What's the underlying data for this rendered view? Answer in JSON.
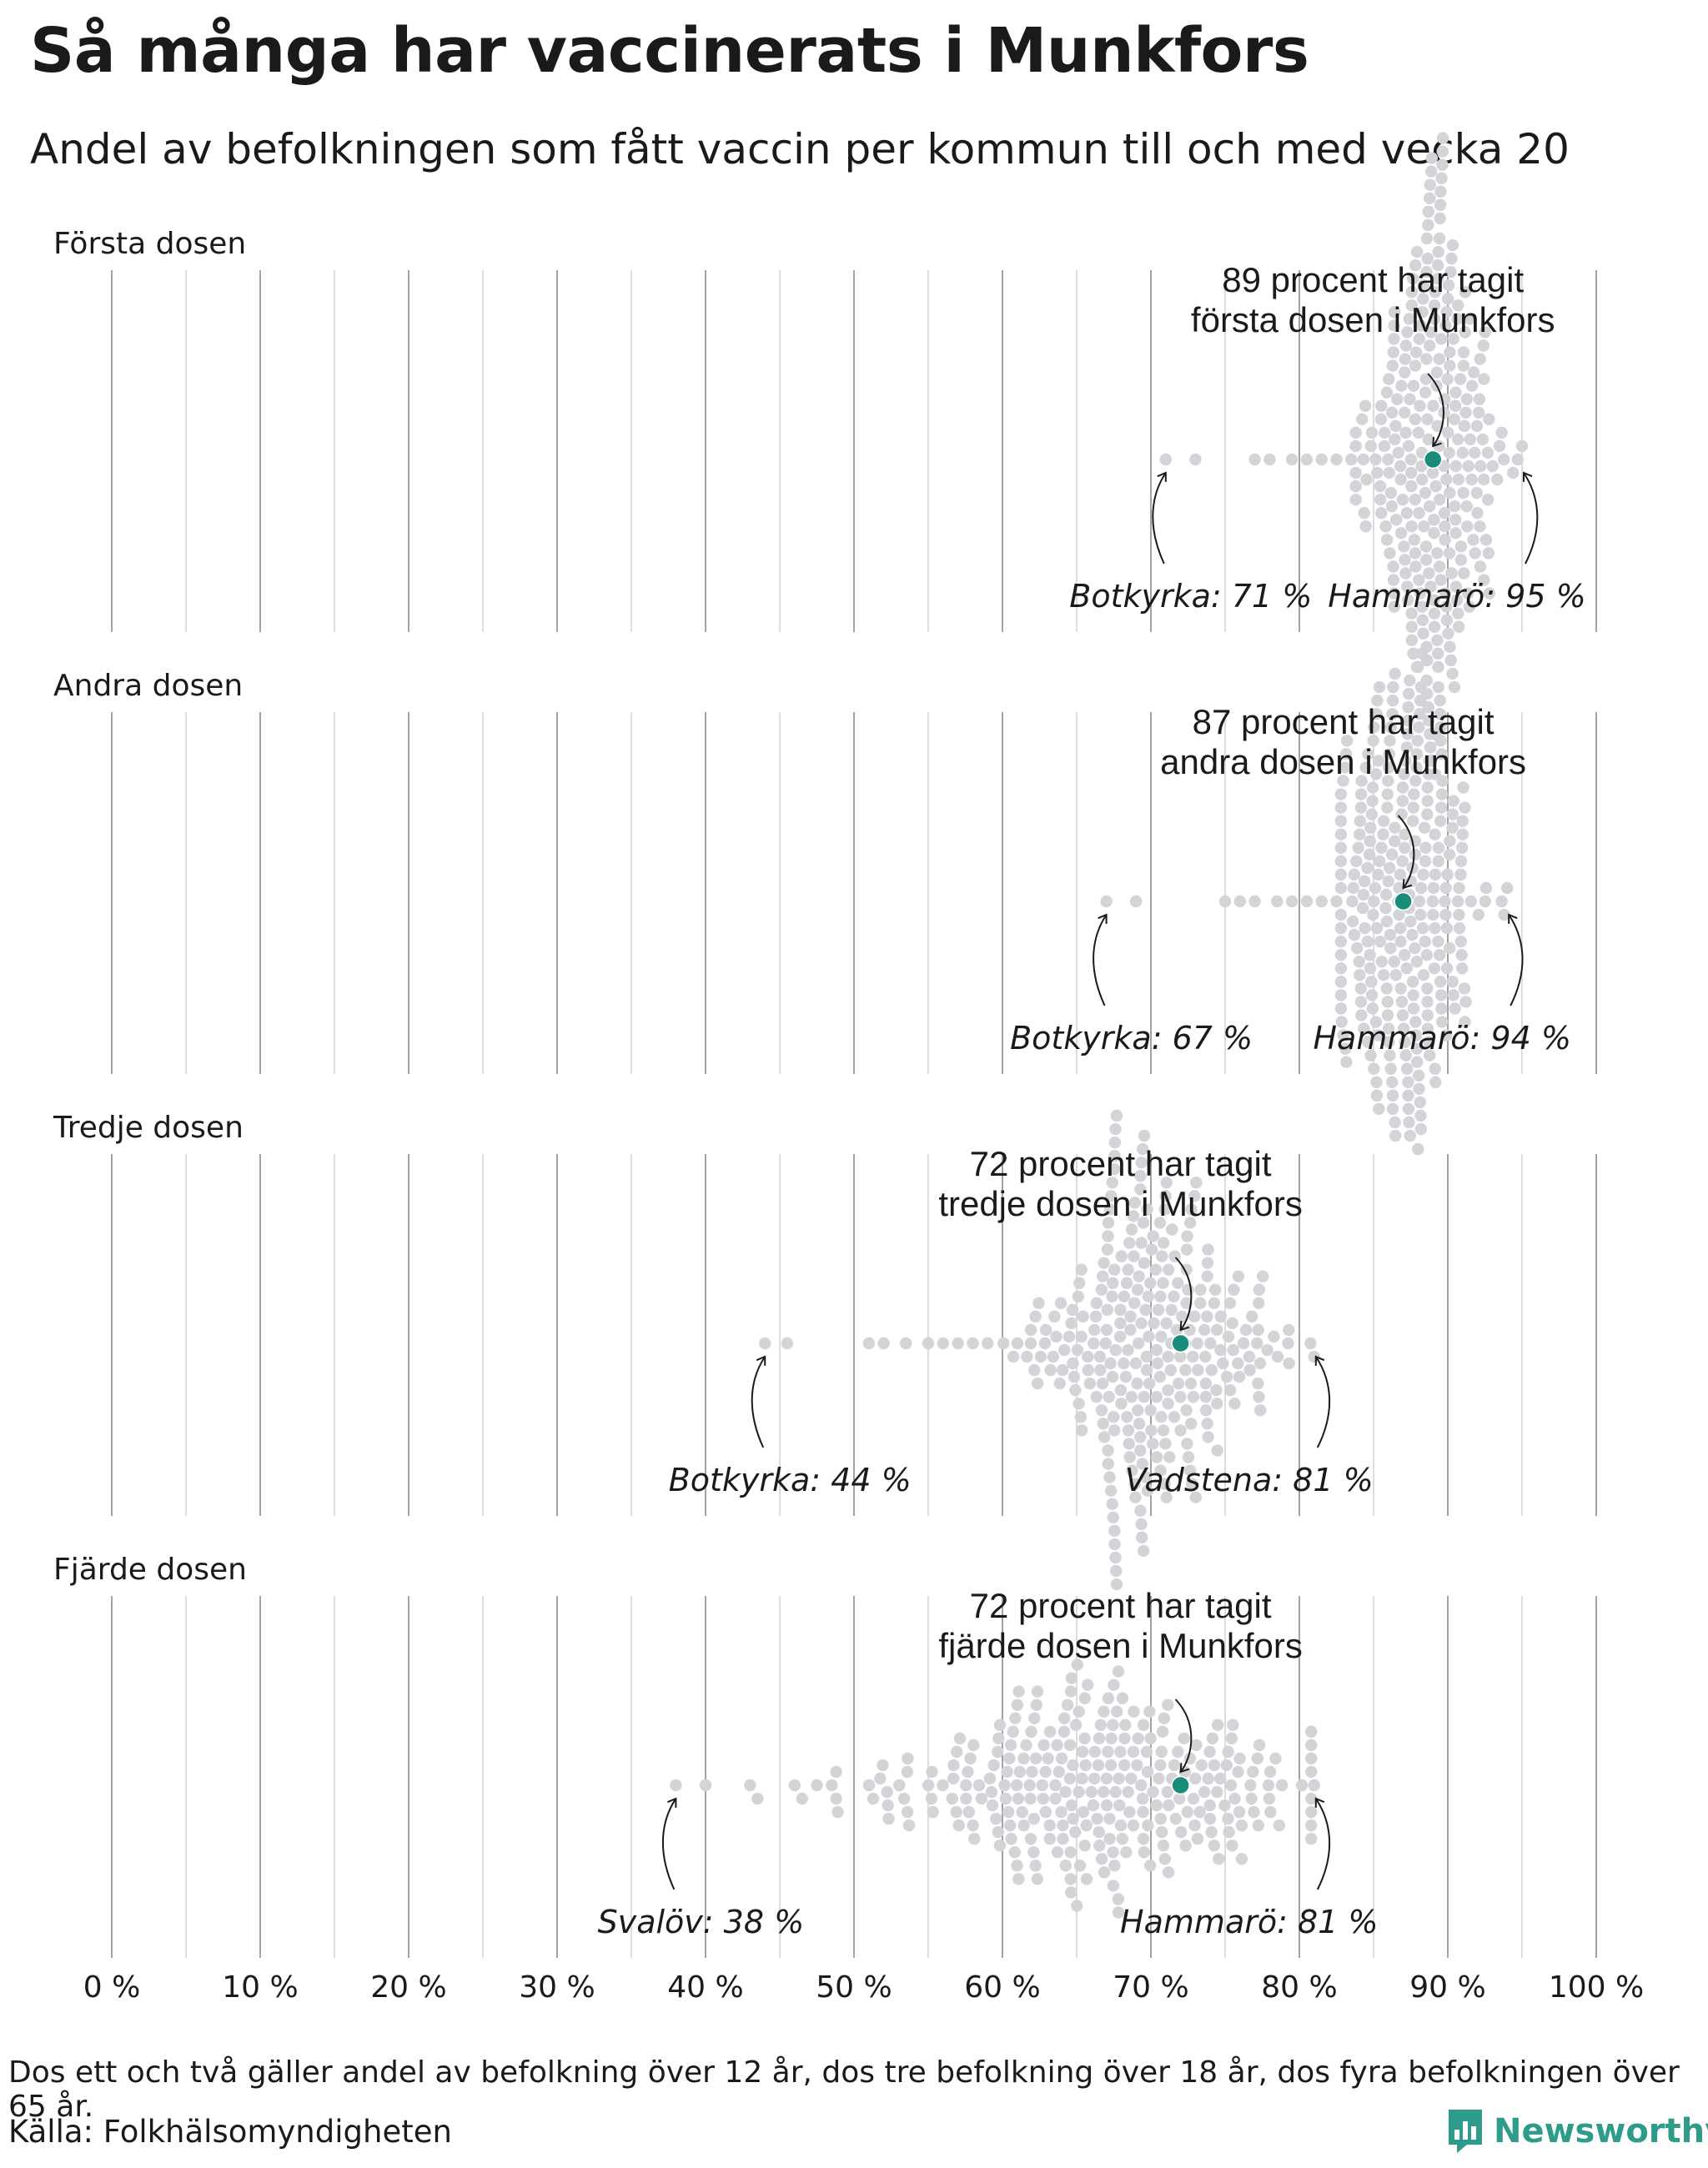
{
  "title": "Så många har vaccinerats i Munkfors",
  "subtitle": "Andel av befolkningen som fått vaccin per kommun till och med vecka 20",
  "footnote": "Dos ett och två gäller andel av befolkning över 12 år, dos tre befolkning över 18 år, dos fyra befolkningen över 65 år.",
  "source": "Källa: Folkhälsomyndigheten",
  "logo_text": "Newsworthy",
  "colors": {
    "highlight": "#1a8c7c",
    "dot": "#d4d3d8",
    "grid": "#b3b3b3",
    "logo": "#2f9b8a"
  },
  "chart_data": {
    "type": "scatter",
    "subtype": "beeswarm",
    "x_unit": "%",
    "xlim": [
      0,
      100
    ],
    "x_ticks": [
      0,
      10,
      20,
      30,
      40,
      50,
      60,
      70,
      80,
      90,
      100
    ],
    "x_tick_labels": [
      "0 %",
      "10 %",
      "20 %",
      "30 %",
      "40 %",
      "50 %",
      "60 %",
      "70 %",
      "80 %",
      "90 %",
      "100 %"
    ],
    "grid": true,
    "panels": [
      {
        "label": "Första dosen",
        "highlight_value": 89,
        "highlight_label_line1": "89 procent har tagit",
        "highlight_label_line2": "första dosen i Munkfors",
        "min": {
          "value": 71,
          "label": "Botkyrka: 71 %"
        },
        "max": {
          "value": 95,
          "label": "Hammarö: 95 %"
        },
        "distribution": {
          "count": 290,
          "center": 89,
          "spread": 2.2,
          "tail_left": [
            71,
            73,
            77,
            78,
            79.5,
            80.5,
            81.5,
            82.5,
            83.5
          ]
        }
      },
      {
        "label": "Andra dosen",
        "highlight_value": 87,
        "highlight_label_line1": "87 procent har tagit",
        "highlight_label_line2": "andra dosen i Munkfors",
        "min": {
          "value": 67,
          "label": "Botkyrka: 67 %"
        },
        "max": {
          "value": 94,
          "label": "Hammarö: 94 %"
        },
        "distribution": {
          "count": 290,
          "center": 87,
          "spread": 2.6,
          "tail_left": [
            67,
            69,
            75,
            76,
            77,
            78.5,
            79.5,
            80.5,
            81.5,
            82.5
          ]
        }
      },
      {
        "label": "Tredje dosen",
        "highlight_value": 72,
        "highlight_label_line1": "72 procent har tagit",
        "highlight_label_line2": "tredje dosen i Munkfors",
        "min": {
          "value": 44,
          "label": "Botkyrka: 44 %"
        },
        "max": {
          "value": 81,
          "label": "Vadstena: 81 %"
        },
        "distribution": {
          "count": 290,
          "center": 70,
          "spread": 4.2,
          "tail_left": [
            44,
            45.5,
            51,
            52,
            53.5,
            55,
            56,
            57,
            58,
            59
          ]
        }
      },
      {
        "label": "Fjärde dosen",
        "highlight_value": 72,
        "highlight_label_line1": "72 procent har tagit",
        "highlight_label_line2": "fjärde dosen i Munkfors",
        "min": {
          "value": 38,
          "label": "Svalöv: 38 %"
        },
        "max": {
          "value": 81,
          "label": "Hammarö: 81 %"
        },
        "distribution": {
          "count": 290,
          "center": 66,
          "spread": 7.5,
          "tail_left": [
            38,
            40,
            43,
            43.5,
            46,
            46.5,
            47.5,
            48.5
          ]
        }
      }
    ]
  }
}
